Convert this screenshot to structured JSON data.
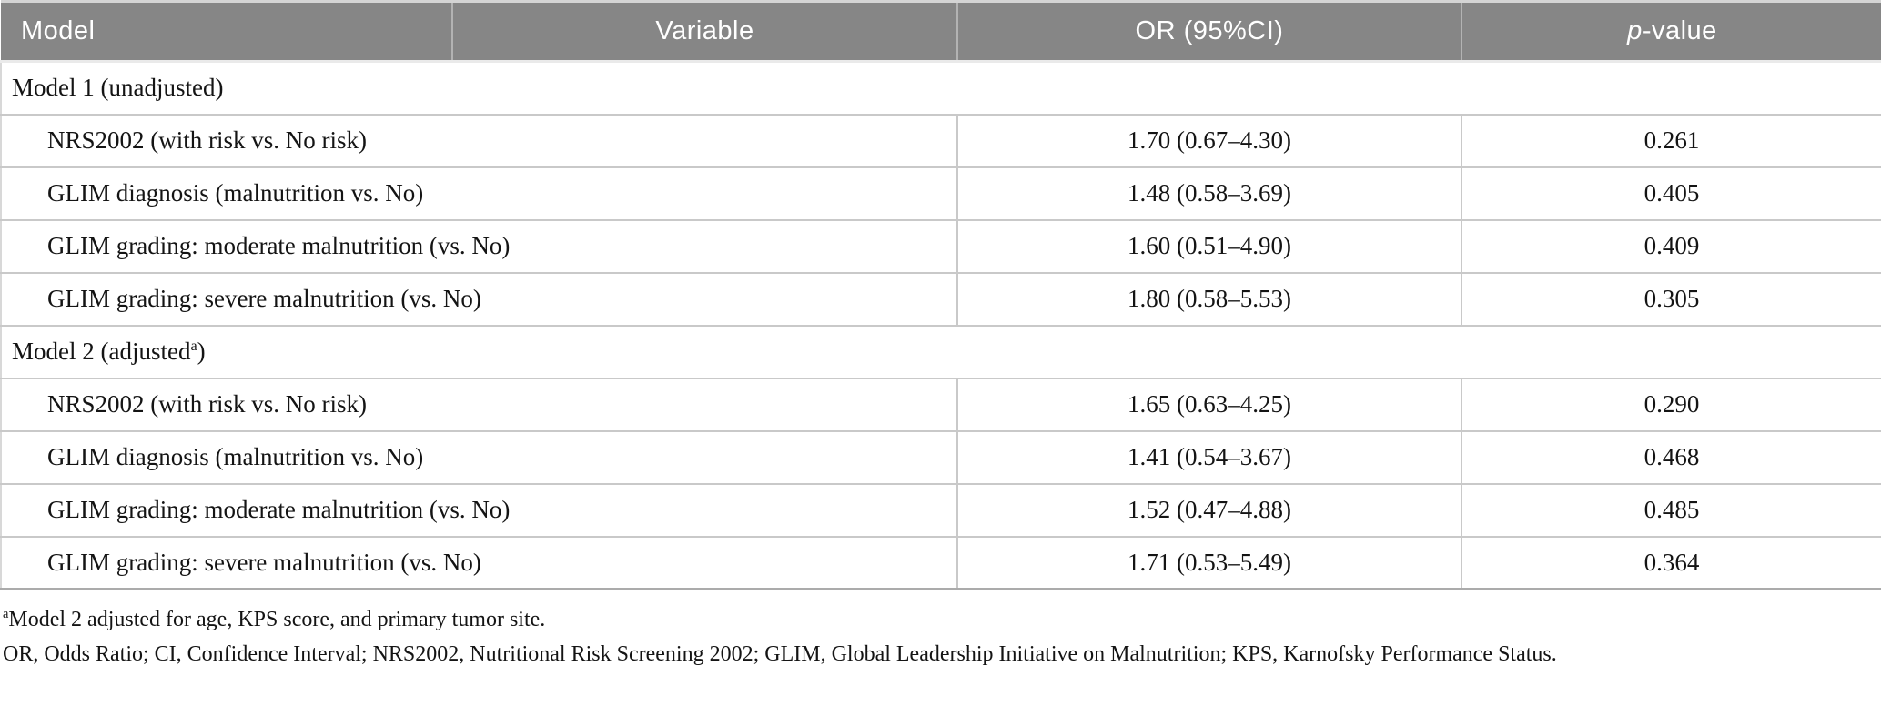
{
  "colors": {
    "header_bg": "#868686",
    "header_text": "#ffffff",
    "row_border": "#c9c9c9",
    "body_text": "#141414"
  },
  "header": {
    "model": "Model",
    "variable": "Variable",
    "or_ci": "OR (95%CI)",
    "p_italic": "p",
    "p_rest": "-value"
  },
  "sections": [
    {
      "title_pre": "Model 1 (unadjusted)",
      "title_sup": "",
      "title_post": "",
      "rows": [
        {
          "variable": "NRS2002 (with risk vs. No risk)",
          "or": "1.70 (0.67–4.30)",
          "p": "0.261"
        },
        {
          "variable": "GLIM diagnosis (malnutrition vs. No)",
          "or": "1.48 (0.58–3.69)",
          "p": "0.405"
        },
        {
          "variable": "GLIM grading: moderate malnutrition (vs. No)",
          "or": "1.60 (0.51–4.90)",
          "p": "0.409"
        },
        {
          "variable": "GLIM grading: severe malnutrition (vs. No)",
          "or": "1.80 (0.58–5.53)",
          "p": "0.305"
        }
      ]
    },
    {
      "title_pre": "Model 2 (adjusted",
      "title_sup": "a",
      "title_post": ")",
      "rows": [
        {
          "variable": "NRS2002 (with risk vs. No risk)",
          "or": "1.65 (0.63–4.25)",
          "p": "0.290"
        },
        {
          "variable": "GLIM diagnosis (malnutrition vs. No)",
          "or": "1.41 (0.54–3.67)",
          "p": "0.468"
        },
        {
          "variable": "GLIM grading: moderate malnutrition (vs. No)",
          "or": "1.52 (0.47–4.88)",
          "p": "0.485"
        },
        {
          "variable": "GLIM grading: severe malnutrition (vs. No)",
          "or": "1.71 (0.53–5.49)",
          "p": "0.364"
        }
      ]
    }
  ],
  "footnotes": {
    "sup": "a",
    "line1": "Model 2 adjusted for age, KPS score, and primary tumor site.",
    "line2": "OR, Odds Ratio; CI, Confidence Interval; NRS2002, Nutritional Risk Screening 2002; GLIM, Global Leadership Initiative on Malnutrition; KPS, Karnofsky Performance Status."
  }
}
